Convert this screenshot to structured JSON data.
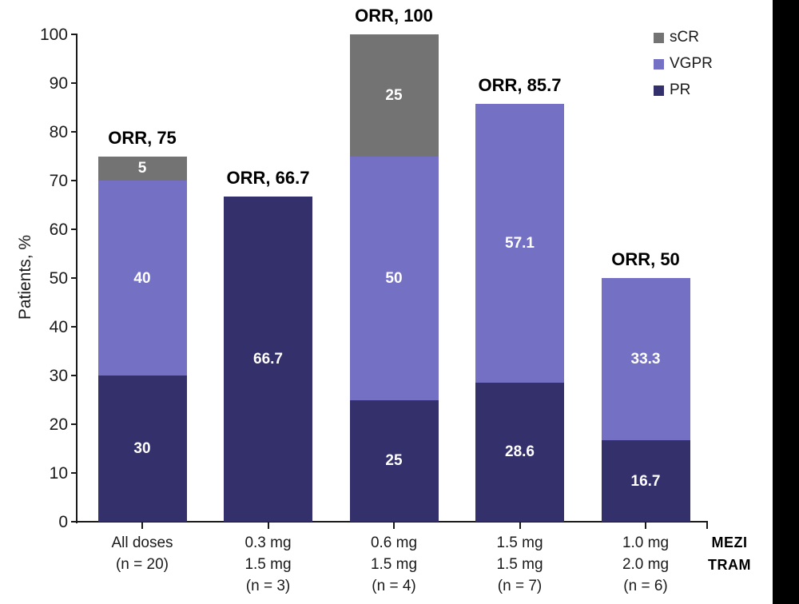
{
  "page": {
    "background_color": "#ffffff",
    "right_strip_color": "#000000"
  },
  "chart_data": {
    "type": "bar",
    "stacked": true,
    "ylabel": "Patients, %",
    "ylim": [
      0,
      100
    ],
    "yticks": [
      0,
      10,
      20,
      30,
      40,
      50,
      60,
      70,
      80,
      90,
      100
    ],
    "grid": false,
    "categories": [
      {
        "lines": [
          "All doses",
          "(n = 20)"
        ]
      },
      {
        "lines": [
          "0.3 mg",
          "1.5 mg",
          "(n = 3)"
        ]
      },
      {
        "lines": [
          "0.6 mg",
          "1.5 mg",
          "(n = 4)"
        ]
      },
      {
        "lines": [
          "1.5 mg",
          "1.5 mg",
          "(n = 7)"
        ]
      },
      {
        "lines": [
          "1.0 mg",
          "2.0 mg",
          "(n = 6)"
        ]
      }
    ],
    "series": [
      {
        "name": "PR",
        "color": "#34306B",
        "values": [
          30,
          66.7,
          25,
          28.6,
          16.7
        ]
      },
      {
        "name": "VGPR",
        "color": "#7470C4",
        "values": [
          40,
          0,
          50,
          57.1,
          33.3
        ]
      },
      {
        "name": "sCR",
        "color": "#737373",
        "values": [
          5,
          0,
          25,
          0,
          0
        ]
      }
    ],
    "bar_total_labels": [
      "ORR, 75",
      "ORR, 66.7",
      "ORR, 100",
      "ORR, 85.7",
      "ORR, 50"
    ],
    "legend": {
      "position": "top-right",
      "entries": [
        "sCR",
        "VGPR",
        "PR"
      ]
    },
    "axis_annotations": [
      "MEZI",
      "TRAM"
    ]
  }
}
